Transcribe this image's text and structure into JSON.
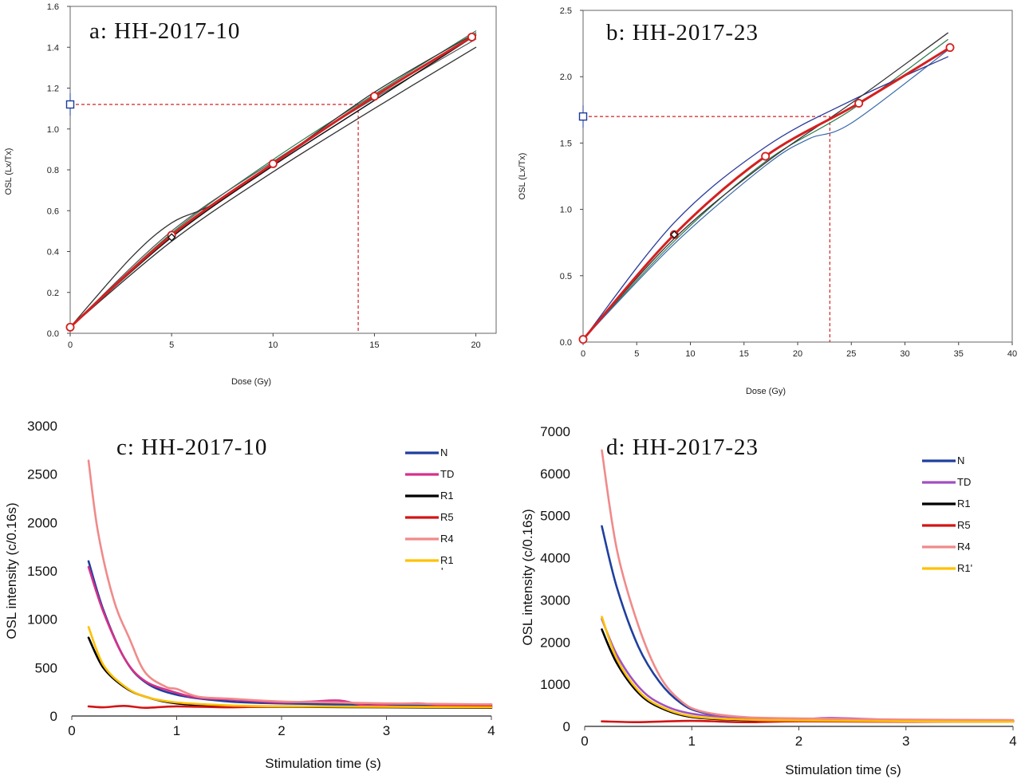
{
  "chart_data": [
    {
      "panel": "a",
      "type": "line",
      "title": "a: HH-2017-10",
      "xlabel": "Dose (Gy)",
      "ylabel": "OSL (Lx/Tx)",
      "xlim": [
        0,
        21
      ],
      "ylim": [
        0,
        1.6
      ],
      "xticks": [
        "0",
        "5",
        "10",
        "15",
        "20"
      ],
      "yticks": [
        "0.0",
        "0.2",
        "0.4",
        "0.6",
        "0.8",
        "1.0",
        "1.2",
        "1.4",
        "1.6"
      ],
      "colors": {
        "main": "#d42020",
        "marker_edge": "#d42020",
        "natural": "#1a3a9a",
        "guide": "#d42020"
      },
      "series": [
        {
          "color": "#d42020",
          "width": 3,
          "x": [
            0,
            5,
            10,
            15,
            19.8
          ],
          "y": [
            0.03,
            0.48,
            0.83,
            1.16,
            1.45
          ],
          "markers": "open-circle"
        },
        {
          "color": "#333333",
          "width": 1.3,
          "x": [
            0,
            3,
            5,
            7,
            10,
            15,
            20
          ],
          "y": [
            0.03,
            0.37,
            0.54,
            0.63,
            0.83,
            1.18,
            1.47
          ]
        },
        {
          "color": "#333333",
          "width": 1.3,
          "x": [
            0,
            5,
            10,
            15,
            20
          ],
          "y": [
            0.03,
            0.45,
            0.79,
            1.1,
            1.4
          ]
        },
        {
          "color": "#111111",
          "width": 1.5,
          "x": [
            0,
            5,
            10,
            15,
            20
          ],
          "y": [
            0.03,
            0.47,
            0.82,
            1.14,
            1.46
          ]
        },
        {
          "color": "#2a7a4a",
          "width": 1.2,
          "x": [
            0,
            5,
            10,
            15,
            20
          ],
          "y": [
            0.03,
            0.49,
            0.85,
            1.17,
            1.48
          ]
        },
        {
          "color": "#555555",
          "width": 1.2,
          "x": [
            0,
            5,
            10,
            15,
            20
          ],
          "y": [
            0.03,
            0.5,
            0.84,
            1.15,
            1.44
          ]
        }
      ],
      "natural": {
        "x": 0,
        "y": 1.12
      },
      "de": 14.2,
      "extra_marker": {
        "x": 5,
        "y": 0.47
      }
    },
    {
      "panel": "b",
      "type": "line",
      "title": "b: HH-2017-23",
      "xlabel": "Dose (Gy)",
      "ylabel": "OSL (Lx/Tx)",
      "xlim": [
        0,
        40
      ],
      "ylim": [
        0,
        2.5
      ],
      "xticks": [
        "0",
        "5",
        "10",
        "15",
        "20",
        "25",
        "30",
        "35",
        "40"
      ],
      "yticks": [
        "0.0",
        "0.5",
        "1.0",
        "1.5",
        "2.0",
        "2.5"
      ],
      "colors": {
        "main": "#d42020",
        "marker_edge": "#d42020",
        "natural": "#1a3a9a",
        "guide": "#d42020"
      },
      "series": [
        {
          "color": "#d42020",
          "width": 3,
          "x": [
            0,
            8.5,
            17,
            25.7,
            34.2
          ],
          "y": [
            0.02,
            0.81,
            1.4,
            1.8,
            2.22
          ],
          "markers": "open-circle"
        },
        {
          "color": "#2a3a9a",
          "width": 1.3,
          "x": [
            0,
            8.5,
            17,
            25,
            34
          ],
          "y": [
            0.02,
            0.9,
            1.47,
            1.82,
            2.15
          ]
        },
        {
          "color": "#333333",
          "width": 1.3,
          "x": [
            0,
            8.5,
            17,
            25,
            34
          ],
          "y": [
            0.02,
            0.78,
            1.35,
            1.8,
            2.33
          ]
        },
        {
          "color": "#2a7a4a",
          "width": 1.2,
          "x": [
            0,
            8.5,
            17,
            25,
            34
          ],
          "y": [
            0.02,
            0.76,
            1.36,
            1.75,
            2.28
          ]
        },
        {
          "color": "#3a6aaa",
          "width": 1.2,
          "x": [
            0,
            8.5,
            17,
            21,
            25,
            34
          ],
          "y": [
            0.02,
            0.74,
            1.33,
            1.53,
            1.65,
            2.2
          ]
        }
      ],
      "natural": {
        "x": 0,
        "y": 1.7
      },
      "de": 23,
      "extra_marker": {
        "x": 8.5,
        "y": 0.81
      }
    },
    {
      "panel": "c",
      "type": "line",
      "title": "c: HH-2017-10",
      "xlabel": "Stimulation time (s)",
      "ylabel": "OSL intensity (c/0.16s)",
      "xlim": [
        0,
        4
      ],
      "ylim": [
        0,
        3000
      ],
      "xticks": [
        "0",
        "1",
        "2",
        "3",
        "4"
      ],
      "yticks": [
        "0",
        "500",
        "1000",
        "1500",
        "2000",
        "2500",
        "3000"
      ],
      "legend": [
        {
          "label": "N",
          "color": "#1f3f9f"
        },
        {
          "label": "TD",
          "color": "#d6308a"
        },
        {
          "label": "R1",
          "color": "#000000"
        },
        {
          "label": "R5",
          "color": "#d41414"
        },
        {
          "label": "R4",
          "color": "#f08a8a"
        },
        {
          "label": "R1",
          "sublabel": "'",
          "color": "#ffc000"
        }
      ],
      "series": [
        {
          "name": "N",
          "color": "#1f3f9f",
          "x": [
            0.16,
            0.3,
            0.5,
            0.7,
            1.0,
            1.5,
            2.0,
            2.5,
            3.0,
            4.0
          ],
          "y": [
            1600,
            1100,
            600,
            350,
            220,
            150,
            130,
            120,
            115,
            105
          ]
        },
        {
          "name": "TD",
          "color": "#d6308a",
          "x": [
            0.16,
            0.3,
            0.5,
            0.7,
            1.0,
            1.2,
            1.5,
            1.8,
            2.0,
            2.3,
            2.55,
            2.8,
            3.0,
            3.3,
            3.6,
            4.0
          ],
          "y": [
            1540,
            1080,
            600,
            360,
            240,
            190,
            170,
            150,
            140,
            150,
            160,
            110,
            120,
            130,
            110,
            120
          ]
        },
        {
          "name": "R1",
          "color": "#000000",
          "x": [
            0.16,
            0.3,
            0.5,
            0.7,
            1.0,
            1.5,
            2.0,
            3.0,
            4.0
          ],
          "y": [
            810,
            500,
            300,
            200,
            130,
            100,
            95,
            90,
            85
          ]
        },
        {
          "name": "R5",
          "color": "#d41414",
          "x": [
            0.16,
            0.3,
            0.5,
            0.7,
            1.0,
            1.5,
            2.0,
            3.0,
            4.0
          ],
          "y": [
            100,
            90,
            105,
            85,
            100,
            90,
            100,
            95,
            100
          ]
        },
        {
          "name": "R4",
          "color": "#f08a8a",
          "x": [
            0.16,
            0.25,
            0.4,
            0.55,
            0.7,
            0.9,
            1.0,
            1.2,
            1.5,
            2.0,
            2.5,
            3.0,
            3.5,
            4.0
          ],
          "y": [
            2640,
            1900,
            1200,
            800,
            450,
            300,
            280,
            200,
            180,
            150,
            140,
            130,
            125,
            120
          ]
        },
        {
          "name": "R1",
          "color": "#ffc000",
          "x": [
            0.16,
            0.3,
            0.5,
            0.7,
            1.0,
            1.5,
            2.0,
            3.0,
            4.0
          ],
          "y": [
            920,
            530,
            310,
            200,
            140,
            110,
            100,
            95,
            90
          ]
        }
      ]
    },
    {
      "panel": "d",
      "type": "line",
      "title": "d: HH-2017-23",
      "xlabel": "Stimulation time (s)",
      "ylabel": "OSL intensity (c/0.16s)",
      "xlim": [
        0,
        4
      ],
      "ylim": [
        0,
        7000
      ],
      "xticks": [
        "0",
        "1",
        "2",
        "3",
        "4"
      ],
      "yticks": [
        "0",
        "1000",
        "2000",
        "3000",
        "4000",
        "5000",
        "6000",
        "7000"
      ],
      "legend": [
        {
          "label": "N",
          "color": "#1f3f9f"
        },
        {
          "label": "TD",
          "color": "#a050c0"
        },
        {
          "label": "R1",
          "color": "#000000"
        },
        {
          "label": "R5",
          "color": "#d41414"
        },
        {
          "label": "R4",
          "color": "#f08a8a"
        },
        {
          "label": "R1'",
          "color": "#ffc000"
        }
      ],
      "series": [
        {
          "name": "N",
          "color": "#1f3f9f",
          "x": [
            0.16,
            0.3,
            0.5,
            0.7,
            0.9,
            1.1,
            1.5,
            2.0,
            3.0,
            4.0
          ],
          "y": [
            4750,
            3300,
            1900,
            1050,
            550,
            330,
            200,
            170,
            150,
            140
          ]
        },
        {
          "name": "TD",
          "color": "#a050c0",
          "x": [
            0.16,
            0.3,
            0.5,
            0.7,
            1.0,
            1.5,
            2.0,
            2.3,
            3.0,
            4.0
          ],
          "y": [
            2550,
            1700,
            950,
            550,
            300,
            200,
            170,
            200,
            150,
            140
          ]
        },
        {
          "name": "R1",
          "color": "#000000",
          "x": [
            0.16,
            0.3,
            0.5,
            0.7,
            1.0,
            1.5,
            2.0,
            3.0,
            4.0
          ],
          "y": [
            2300,
            1500,
            800,
            450,
            220,
            150,
            130,
            120,
            110
          ]
        },
        {
          "name": "R5",
          "color": "#d41414",
          "x": [
            0.16,
            0.5,
            1.0,
            1.5,
            2.0,
            3.0,
            4.0
          ],
          "y": [
            120,
            100,
            130,
            100,
            120,
            110,
            120
          ]
        },
        {
          "name": "R4",
          "color": "#f08a8a",
          "x": [
            0.16,
            0.3,
            0.5,
            0.7,
            0.9,
            1.1,
            1.5,
            2.0,
            3.0,
            4.0
          ],
          "y": [
            6550,
            4200,
            2400,
            1200,
            600,
            350,
            220,
            190,
            160,
            150
          ]
        },
        {
          "name": "R1'",
          "color": "#ffc000",
          "x": [
            0.16,
            0.3,
            0.5,
            0.7,
            1.0,
            1.5,
            2.0,
            3.0,
            4.0
          ],
          "y": [
            2600,
            1600,
            850,
            480,
            240,
            160,
            140,
            120,
            110
          ]
        }
      ]
    }
  ]
}
